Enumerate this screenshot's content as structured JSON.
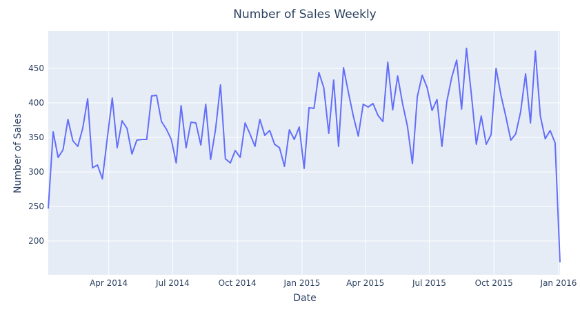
{
  "chart_data": {
    "type": "line",
    "title": "Number of Sales Weekly",
    "xlabel": "Date",
    "ylabel": "Number of Sales",
    "xlim": [
      "2014-01-05",
      "2016-01-03"
    ],
    "ylim": [
      151,
      504
    ],
    "grid": true,
    "line_color": "#636efa",
    "plot_bg": "#e5ecf6",
    "x_ticks": [
      {
        "date": "2014-04-01",
        "label": "Apr 2014"
      },
      {
        "date": "2014-07-01",
        "label": "Jul 2014"
      },
      {
        "date": "2014-10-01",
        "label": "Oct 2014"
      },
      {
        "date": "2015-01-01",
        "label": "Jan 2015"
      },
      {
        "date": "2015-04-01",
        "label": "Apr 2015"
      },
      {
        "date": "2015-07-01",
        "label": "Jul 2015"
      },
      {
        "date": "2015-10-01",
        "label": "Oct 2015"
      },
      {
        "date": "2016-01-01",
        "label": "Jan 2016"
      }
    ],
    "y_ticks": [
      200,
      250,
      300,
      350,
      400,
      450
    ],
    "x": [
      "2014-01-05",
      "2014-01-12",
      "2014-01-19",
      "2014-01-26",
      "2014-02-02",
      "2014-02-09",
      "2014-02-16",
      "2014-02-23",
      "2014-03-02",
      "2014-03-09",
      "2014-03-16",
      "2014-03-23",
      "2014-03-30",
      "2014-04-06",
      "2014-04-13",
      "2014-04-20",
      "2014-04-27",
      "2014-05-04",
      "2014-05-11",
      "2014-05-18",
      "2014-05-25",
      "2014-06-01",
      "2014-06-08",
      "2014-06-15",
      "2014-06-22",
      "2014-06-29",
      "2014-07-06",
      "2014-07-13",
      "2014-07-20",
      "2014-07-27",
      "2014-08-03",
      "2014-08-10",
      "2014-08-17",
      "2014-08-24",
      "2014-08-31",
      "2014-09-07",
      "2014-09-14",
      "2014-09-21",
      "2014-09-28",
      "2014-10-05",
      "2014-10-12",
      "2014-10-19",
      "2014-10-26",
      "2014-11-02",
      "2014-11-09",
      "2014-11-16",
      "2014-11-23",
      "2014-11-30",
      "2014-12-07",
      "2014-12-14",
      "2014-12-21",
      "2014-12-28",
      "2015-01-04",
      "2015-01-11",
      "2015-01-18",
      "2015-01-25",
      "2015-02-01",
      "2015-02-08",
      "2015-02-15",
      "2015-02-22",
      "2015-03-01",
      "2015-03-08",
      "2015-03-15",
      "2015-03-22",
      "2015-03-29",
      "2015-04-05",
      "2015-04-12",
      "2015-04-19",
      "2015-04-26",
      "2015-05-03",
      "2015-05-10",
      "2015-05-17",
      "2015-05-24",
      "2015-05-31",
      "2015-06-07",
      "2015-06-14",
      "2015-06-21",
      "2015-06-28",
      "2015-07-05",
      "2015-07-12",
      "2015-07-19",
      "2015-07-26",
      "2015-08-02",
      "2015-08-09",
      "2015-08-16",
      "2015-08-23",
      "2015-08-30",
      "2015-09-06",
      "2015-09-13",
      "2015-09-20",
      "2015-09-27",
      "2015-10-04",
      "2015-10-11",
      "2015-10-18",
      "2015-10-25",
      "2015-11-01",
      "2015-11-08",
      "2015-11-15",
      "2015-11-22",
      "2015-11-29",
      "2015-12-06",
      "2015-12-13",
      "2015-12-20",
      "2015-12-27",
      "2016-01-03"
    ],
    "y": [
      247,
      358,
      321,
      332,
      376,
      345,
      337,
      363,
      406,
      306,
      310,
      290,
      349,
      407,
      335,
      374,
      363,
      326,
      346,
      347,
      347,
      410,
      411,
      373,
      362,
      347,
      313,
      396,
      335,
      372,
      371,
      339,
      398,
      318,
      362,
      426,
      319,
      313,
      331,
      321,
      371,
      355,
      337,
      376,
      353,
      360,
      340,
      335,
      308,
      361,
      347,
      365,
      305,
      393,
      392,
      444,
      422,
      356,
      433,
      337,
      451,
      415,
      381,
      352,
      398,
      394,
      399,
      382,
      373,
      459,
      390,
      439,
      399,
      366,
      312,
      409,
      440,
      422,
      389,
      405,
      337,
      402,
      437,
      462,
      391,
      479,
      411,
      340,
      381,
      340,
      354,
      450,
      411,
      380,
      346,
      355,
      387,
      442,
      371,
      475,
      381,
      348,
      360,
      342,
      169
    ]
  }
}
